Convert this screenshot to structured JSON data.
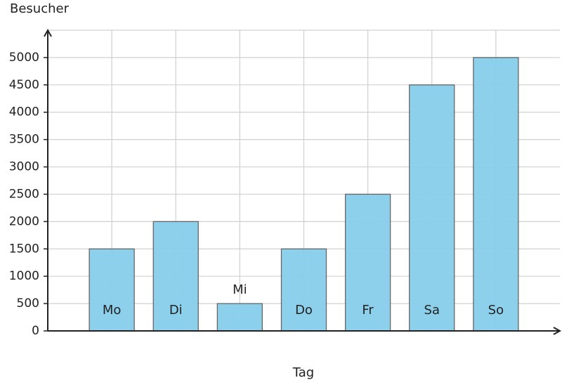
{
  "chart_data": {
    "type": "bar",
    "y_label": "Besucher",
    "x_label": "Tag",
    "categories": [
      "Mo",
      "Di",
      "Mi",
      "Do",
      "Fr",
      "Sa",
      "So"
    ],
    "values": [
      1500,
      2000,
      500,
      1500,
      2500,
      4500,
      5000
    ],
    "color": "#87ceeb",
    "ylim": [
      0,
      5500
    ],
    "yticks": [
      0,
      500,
      1000,
      1500,
      2000,
      2500,
      3000,
      3500,
      4000,
      4500,
      5000
    ],
    "grid": true
  }
}
